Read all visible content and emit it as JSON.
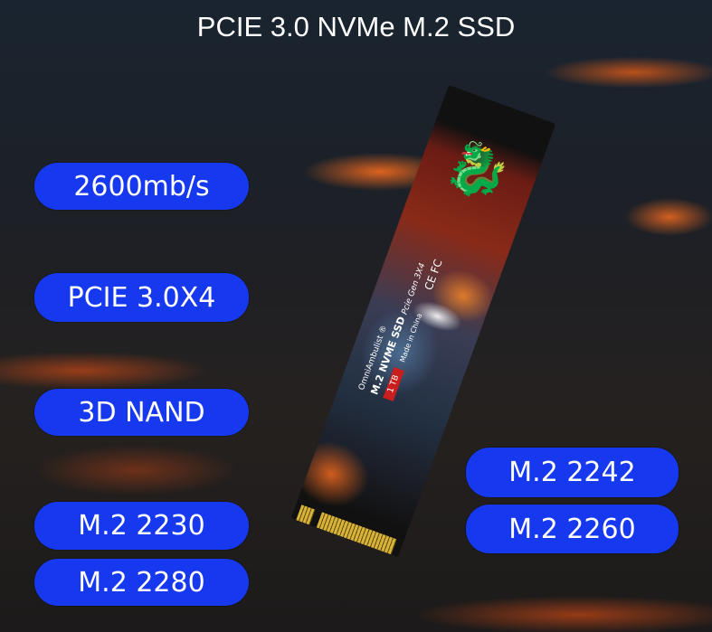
{
  "title": "PCIE 3.0 NVMe M.2 SSD",
  "features_left": [
    "2600mb/s",
    "PCIE 3.0X4",
    "3D NAND",
    "M.2 2230",
    "M.2 2280"
  ],
  "features_right": [
    "M.2 2242",
    "M.2 2260"
  ],
  "ssd": {
    "brand": "OmniAmbulist ®",
    "model": "M.2 NVME SSD",
    "interface": "Pcie Gen 3X4",
    "capacity": "1 TB",
    "origin": "Made in China",
    "certifications": "CE FC"
  },
  "colors": {
    "pill": "#1638ee",
    "capacity_badge": "#c81e1e"
  }
}
